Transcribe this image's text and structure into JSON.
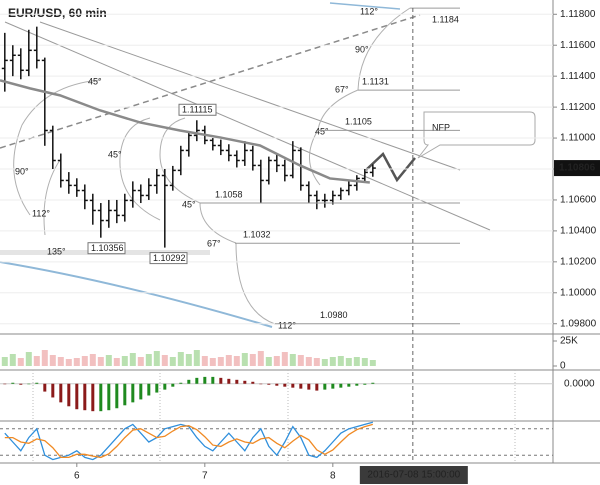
{
  "chart_data": [
    {
      "type": "ohlc",
      "title": "EUR/USD, 60 min",
      "x": [
        5.4375,
        5.5,
        5.5625,
        5.625,
        5.6875,
        5.75,
        5.8125,
        5.875,
        5.9375,
        6,
        6.0625,
        6.125,
        6.1875,
        6.25,
        6.3125,
        6.375,
        6.4375,
        6.5,
        6.5625,
        6.625,
        6.6875,
        6.75,
        6.8125,
        6.875,
        6.9375,
        7,
        7.0625,
        7.125,
        7.1875,
        7.25,
        7.3125,
        7.375,
        7.4375,
        7.5,
        7.5625,
        7.625,
        7.6875,
        7.75,
        7.8125,
        7.875,
        7.9375,
        8,
        8.0625,
        8.125,
        8.1875,
        8.25,
        8.3125
      ],
      "open": [
        1.1145,
        1.11502,
        1.11535,
        1.11438,
        1.11567,
        1.11502,
        1.11049,
        1.10855,
        1.10726,
        1.10694,
        1.10661,
        1.10597,
        1.10532,
        1.10467,
        1.10532,
        1.105,
        1.10597,
        1.10661,
        1.10629,
        1.10694,
        1.10758,
        1.10694,
        1.10791,
        1.1092,
        1.11017,
        1.11049,
        1.10985,
        1.10952,
        1.1092,
        1.10888,
        1.10855,
        1.1092,
        1.10823,
        1.10726,
        1.10855,
        1.10823,
        1.10758,
        1.1092,
        1.10694,
        1.10629,
        1.10597,
        1.10597,
        1.10629,
        1.10661,
        1.10694,
        1.10739,
        1.10778
      ],
      "high": [
        1.1168,
        1.116,
        1.1158,
        1.117,
        1.1172,
        1.1152,
        1.1108,
        1.109,
        1.1078,
        1.1074,
        1.107,
        1.1064,
        1.1058,
        1.106,
        1.106,
        1.1064,
        1.1072,
        1.107,
        1.1074,
        1.108,
        1.108,
        1.1082,
        1.1095,
        1.1104,
        1.11115,
        1.1108,
        1.11,
        1.1099,
        1.1096,
        1.1092,
        1.1098,
        1.1095,
        1.1086,
        1.1088,
        1.109,
        1.1086,
        1.1098,
        1.1094,
        1.1072,
        1.1066,
        1.1064,
        1.1066,
        1.1068,
        1.1072,
        1.1076,
        1.108,
        1.1083
      ],
      "low": [
        1.113,
        1.114,
        1.1138,
        1.114,
        1.1145,
        1.1095,
        1.108,
        1.1068,
        1.1064,
        1.1062,
        1.1054,
        1.1044,
        1.10356,
        1.1042,
        1.1045,
        1.1046,
        1.1055,
        1.1058,
        1.106,
        1.1064,
        1.10292,
        1.1066,
        1.1076,
        1.1088,
        1.1098,
        1.1096,
        1.1092,
        1.1089,
        1.1085,
        1.1081,
        1.1082,
        1.1079,
        1.1058,
        1.107,
        1.1078,
        1.1072,
        1.1074,
        1.1066,
        1.1058,
        1.1054,
        1.1055,
        1.1057,
        1.106,
        1.1063,
        1.1066,
        1.1071,
        1.1075
      ],
      "close": [
        1.11502,
        1.11535,
        1.11438,
        1.11567,
        1.11502,
        1.11049,
        1.10855,
        1.10726,
        1.10694,
        1.10661,
        1.10597,
        1.10532,
        1.10467,
        1.10532,
        1.105,
        1.10597,
        1.10661,
        1.10629,
        1.10694,
        1.10758,
        1.10694,
        1.10791,
        1.1092,
        1.11017,
        1.11049,
        1.10985,
        1.10952,
        1.1092,
        1.10888,
        1.10855,
        1.1092,
        1.10823,
        1.10726,
        1.10855,
        1.10823,
        1.10758,
        1.1092,
        1.10694,
        1.10629,
        1.10597,
        1.10597,
        1.10629,
        1.10661,
        1.10694,
        1.10739,
        1.10778,
        1.10806
      ],
      "color": "#111111",
      "ma": {
        "x": [
          5.4,
          5.634,
          5.869,
          6.181,
          6.494,
          6.806,
          7.119,
          7.431,
          7.744,
          7.977,
          8.289
        ],
        "values": [
          1.11373,
          1.11321,
          1.11276,
          1.11179,
          1.11101,
          1.11049,
          1.11004,
          1.10952,
          1.10823,
          1.10739,
          1.10713
        ],
        "color": "#8a8a8a"
      },
      "xlim": [
        5.4,
        9.72
      ],
      "xticks": [
        6,
        7,
        8
      ],
      "ylim": [
        1.0974,
        1.1186
      ],
      "yticks": [
        {
          "value": 1.098,
          "label": "1.09800"
        },
        {
          "value": 1.1,
          "label": "1.10000"
        },
        {
          "value": 1.102,
          "label": "1.10200"
        },
        {
          "value": 1.104,
          "label": "1.10400"
        },
        {
          "value": 1.106,
          "label": "1.10600"
        },
        {
          "value": 1.108,
          "label": "1.10800"
        },
        {
          "value": 1.11,
          "label": "1.11000"
        },
        {
          "value": 1.112,
          "label": "1.11200"
        },
        {
          "value": 1.114,
          "label": "1.11400"
        },
        {
          "value": 1.116,
          "label": "1.11600"
        },
        {
          "value": 1.118,
          "label": "1.11800"
        }
      ],
      "grid": true,
      "annotations": {
        "angles": [
          "112°",
          "90°",
          "67°",
          "45°",
          "45°",
          "90°",
          "45°",
          "45°",
          "112°",
          "67°",
          "135°",
          "112°"
        ],
        "levels": [
          {
            "value": 1.1184,
            "label": "1.1184"
          },
          {
            "value": 1.1131,
            "label": "1.1131"
          },
          {
            "value": 1.1105,
            "label": "1.1105"
          },
          {
            "value": 1.1058,
            "label": "1.1058"
          },
          {
            "value": 1.1032,
            "label": "1.1032"
          },
          {
            "value": 1.098,
            "label": "1.0980"
          }
        ],
        "extremes": [
          1.11115,
          1.10356,
          1.10292
        ],
        "last_price": 1.10806,
        "event": "NFP",
        "cursor": {
          "value": 8.625,
          "label": "2016-07-08 15:00:00"
        }
      }
    },
    {
      "type": "bar",
      "values": [
        9000,
        12000,
        8000,
        14000,
        10000,
        16000,
        11000,
        9000,
        7000,
        8000,
        10000,
        12000,
        9000,
        11000,
        8000,
        10000,
        13000,
        9000,
        12000,
        15000,
        11000,
        9000,
        14000,
        12000,
        16000,
        10000,
        8000,
        9000,
        11000,
        10000,
        13000,
        12000,
        15000,
        9000,
        10000,
        14000,
        12000,
        11000,
        9000,
        8000,
        7000,
        9000,
        10000,
        8000,
        9000,
        8000,
        6000
      ],
      "up_color": "#b9e0b0",
      "down_color": "#f2c0c0",
      "ylim": [
        0,
        30000
      ],
      "yticks": [
        {
          "value": 25000,
          "label": "25K"
        },
        0
      ]
    },
    {
      "type": "histogram-bar",
      "values": [
        0,
        0.0001,
        -0.0001,
        0,
        0.0001,
        -0.0008,
        -0.0014,
        -0.0019,
        -0.0023,
        -0.0026,
        -0.0027,
        -0.0028,
        -0.0028,
        -0.0027,
        -0.0025,
        -0.0022,
        -0.0019,
        -0.0016,
        -0.0012,
        -0.0009,
        -0.0006,
        -0.0003,
        0.0001,
        0.0004,
        0.0006,
        0.0007,
        0.0007,
        0.0006,
        0.0005,
        0.0004,
        0.0003,
        0.0002,
        0,
        -0.0001,
        -0.0002,
        -0.0003,
        -0.0004,
        -0.0005,
        -0.0006,
        -0.0007,
        -0.0006,
        -0.0005,
        -0.0004,
        -0.0003,
        -0.0002,
        -0.0001,
        0.0001
      ],
      "up_color": "#1f8a1f",
      "down_color": "#8b1a1a",
      "ylim": [
        -0.0037,
        0.0013
      ],
      "yticks": [
        {
          "value": 0,
          "label": "0.0000"
        }
      ]
    },
    {
      "type": "line",
      "series": [
        {
          "color": "#2f8fdc",
          "values": [
            70,
            50,
            30,
            60,
            80,
            20,
            10,
            15,
            20,
            30,
            15,
            10,
            20,
            40,
            60,
            80,
            90,
            70,
            50,
            60,
            80,
            85,
            90,
            85,
            60,
            40,
            30,
            50,
            70,
            50,
            30,
            60,
            80,
            40,
            20,
            50,
            85,
            60,
            20,
            15,
            30,
            50,
            70,
            80,
            85,
            90,
            95
          ]
        },
        {
          "color": "#f08a24",
          "values": [
            60,
            60,
            50,
            47,
            57,
            53,
            37,
            15,
            15,
            22,
            22,
            18,
            15,
            23,
            40,
            60,
            77,
            80,
            70,
            60,
            63,
            75,
            85,
            87,
            78,
            62,
            43,
            40,
            50,
            57,
            50,
            47,
            57,
            60,
            47,
            37,
            52,
            65,
            55,
            32,
            22,
            32,
            50,
            67,
            78,
            85,
            90
          ]
        }
      ],
      "ylim": [
        0,
        100
      ],
      "yticks": [
        20,
        80
      ]
    }
  ]
}
